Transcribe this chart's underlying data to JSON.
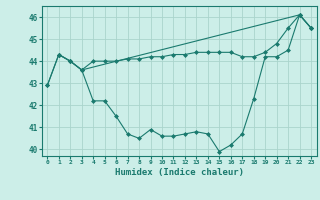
{
  "title": "",
  "xlabel": "Humidex (Indice chaleur)",
  "bg_color": "#cceee8",
  "grid_color": "#aad4cc",
  "line_color": "#1a7a6e",
  "xlim": [
    -0.5,
    23.5
  ],
  "ylim": [
    39.7,
    46.5
  ],
  "yticks": [
    40,
    41,
    42,
    43,
    44,
    45,
    46
  ],
  "xticks": [
    0,
    1,
    2,
    3,
    4,
    5,
    6,
    7,
    8,
    9,
    10,
    11,
    12,
    13,
    14,
    15,
    16,
    17,
    18,
    19,
    20,
    21,
    22,
    23
  ],
  "series1_x": [
    0,
    1,
    2,
    3,
    4,
    5,
    6,
    7,
    8,
    9,
    10,
    11,
    12,
    13,
    14,
    15,
    16,
    17,
    18,
    19,
    20,
    21,
    22,
    23
  ],
  "series1_y": [
    42.9,
    44.3,
    44.0,
    43.6,
    42.2,
    42.2,
    41.5,
    40.7,
    40.5,
    40.9,
    40.6,
    40.6,
    40.7,
    40.8,
    40.7,
    39.9,
    40.2,
    40.7,
    42.3,
    44.2,
    44.2,
    44.5,
    46.1,
    45.5
  ],
  "series2_x": [
    0,
    1,
    2,
    3,
    4,
    5,
    6,
    7,
    8,
    9,
    10,
    11,
    12,
    13,
    14,
    15,
    16,
    17,
    18,
    19,
    20,
    21,
    22,
    23
  ],
  "series2_y": [
    42.9,
    44.3,
    44.0,
    43.6,
    44.0,
    44.0,
    44.0,
    44.1,
    44.1,
    44.2,
    44.2,
    44.3,
    44.3,
    44.4,
    44.4,
    44.4,
    44.4,
    44.2,
    44.2,
    44.4,
    44.8,
    45.5,
    46.1,
    45.5
  ],
  "series3_x": [
    1,
    2,
    3,
    22,
    23
  ],
  "series3_y": [
    44.3,
    44.0,
    43.6,
    46.1,
    45.5
  ]
}
